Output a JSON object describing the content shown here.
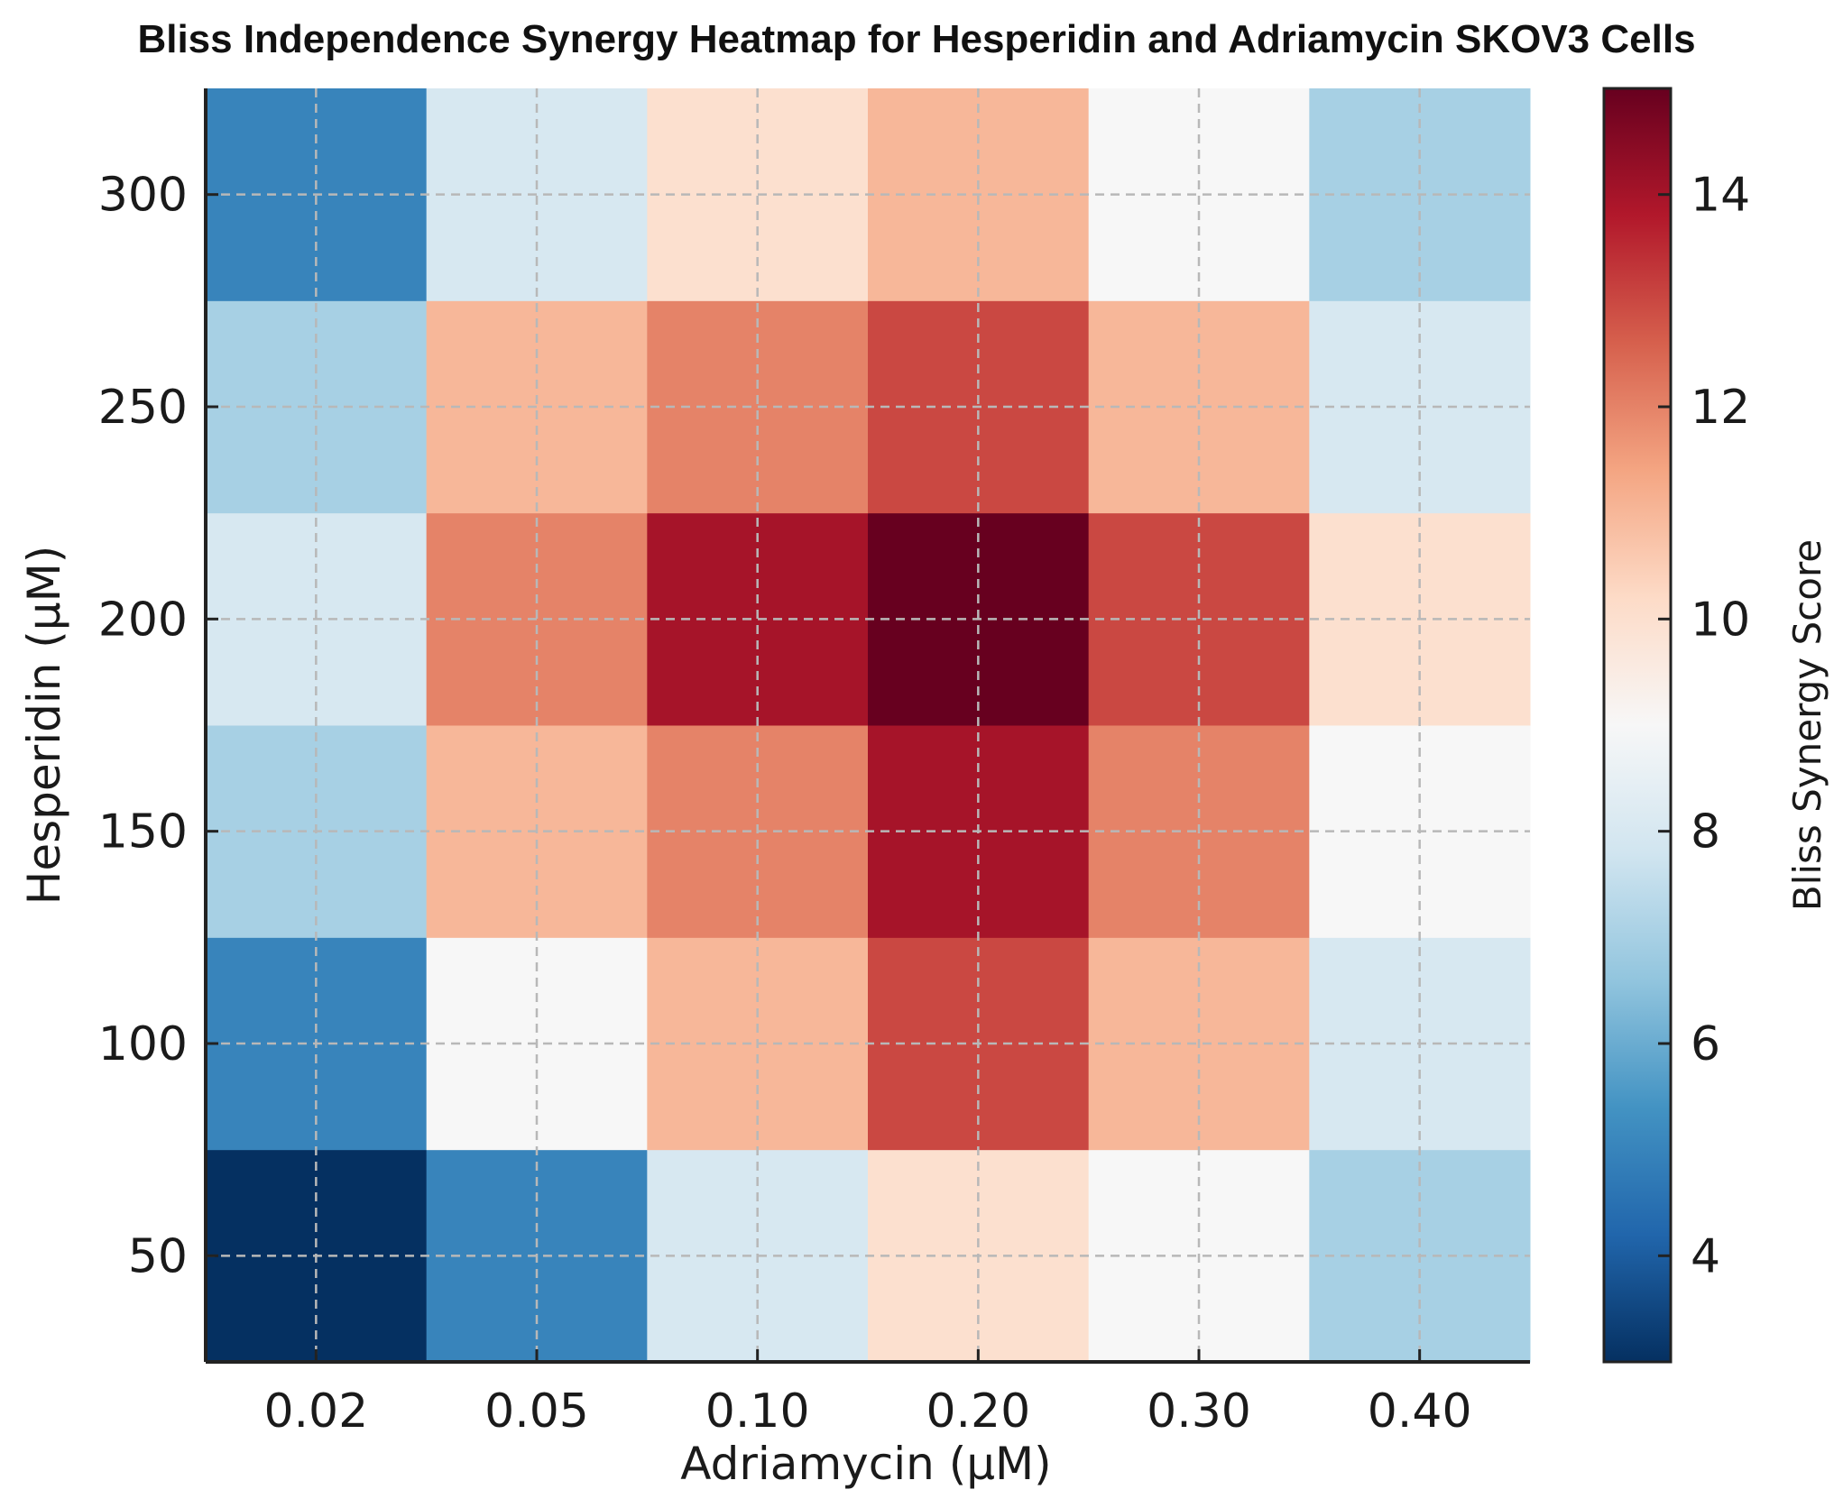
{
  "chart_data": {
    "type": "heatmap",
    "title": "Bliss Independence Synergy Heatmap for Hesperidin and Adriamycin SKOV3 Cells",
    "xlabel": "Adriamycin (μM)",
    "ylabel": "Hesperidin (μM)",
    "x_categories": [
      "0.02",
      "0.05",
      "0.10",
      "0.20",
      "0.30",
      "0.40"
    ],
    "y_categories": [
      "50",
      "100",
      "150",
      "200",
      "250",
      "300"
    ],
    "values": [
      [
        3.0,
        5.0,
        8.0,
        10.0,
        9.0,
        7.0
      ],
      [
        5.0,
        9.0,
        11.0,
        13.0,
        11.0,
        8.0
      ],
      [
        7.0,
        11.0,
        12.0,
        14.0,
        12.0,
        9.0
      ],
      [
        8.0,
        12.0,
        14.0,
        15.0,
        13.0,
        10.0
      ],
      [
        7.0,
        11.0,
        12.0,
        13.0,
        11.0,
        8.0
      ],
      [
        5.0,
        8.0,
        10.0,
        11.0,
        9.0,
        7.0
      ]
    ],
    "colorbar": {
      "label": "Bliss Synergy Score",
      "range": [
        3,
        15
      ],
      "ticks": [
        "4",
        "6",
        "8",
        "10",
        "12",
        "14"
      ],
      "colormap": "RdBu_r"
    },
    "grid": true
  },
  "colors": {
    "stops": [
      "#053061",
      "#2166ac",
      "#4393c3",
      "#92c5de",
      "#d1e5f0",
      "#f7f7f7",
      "#fddbc7",
      "#f4a582",
      "#d6604d",
      "#b2182b",
      "#67001f"
    ],
    "grid": "#b8b8b8"
  }
}
